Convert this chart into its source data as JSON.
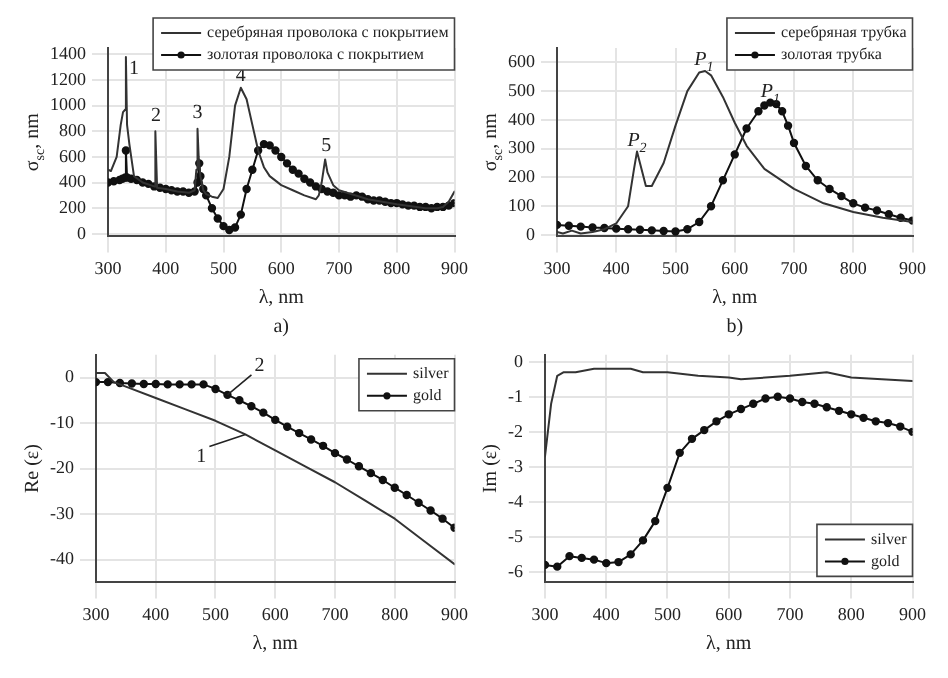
{
  "chart_data": [
    {
      "type": "line",
      "xlabel": "λ, nm",
      "ylabel": "σ$_{sc}$, nm",
      "xlim": [
        300,
        900
      ],
      "xticks": [
        300,
        400,
        500,
        600,
        700,
        800,
        900
      ],
      "ylim": [
        -20,
        1450
      ],
      "yticks": [
        0,
        200,
        400,
        600,
        800,
        1000,
        1200,
        1400
      ],
      "grid": true,
      "legend": "top right",
      "series": [
        {
          "name": "серебряная проволока с покрытием",
          "color": "#333333",
          "marker": "none",
          "x": [
            300,
            305,
            315,
            322,
            326,
            330,
            331,
            333,
            337,
            345,
            360,
            380,
            381,
            383,
            385,
            386,
            400,
            420,
            440,
            450,
            453,
            455,
            457,
            460,
            465,
            470,
            480,
            490,
            500,
            510,
            520,
            530,
            540,
            550,
            560,
            570,
            580,
            600,
            620,
            640,
            660,
            665,
            670,
            676,
            680,
            690,
            700,
            750,
            800,
            850,
            870,
            880,
            890,
            900
          ],
          "values": [
            500,
            490,
            600,
            850,
            950,
            970,
            1380,
            850,
            700,
            450,
            400,
            370,
            370,
            800,
            360,
            360,
            350,
            330,
            320,
            340,
            500,
            820,
            600,
            450,
            340,
            310,
            290,
            280,
            350,
            600,
            1000,
            1140,
            1050,
            850,
            650,
            520,
            450,
            380,
            340,
            300,
            270,
            300,
            400,
            580,
            480,
            380,
            340,
            270,
            230,
            200,
            200,
            210,
            250,
            330
          ]
        },
        {
          "name": "золотая проволока с покрытием",
          "color": "#111111",
          "marker": "circle",
          "x": [
            300,
            310,
            320,
            325,
            330,
            331,
            333,
            340,
            350,
            360,
            370,
            380,
            390,
            400,
            410,
            420,
            430,
            440,
            450,
            455,
            458,
            460,
            465,
            470,
            480,
            490,
            500,
            510,
            520,
            530,
            540,
            550,
            560,
            570,
            580,
            590,
            600,
            610,
            620,
            630,
            640,
            650,
            660,
            670,
            680,
            690,
            700,
            710,
            720,
            730,
            740,
            750,
            760,
            770,
            780,
            790,
            800,
            810,
            820,
            830,
            840,
            850,
            860,
            870,
            880,
            890,
            900
          ],
          "values": [
            400,
            410,
            420,
            430,
            440,
            650,
            440,
            430,
            420,
            400,
            390,
            370,
            360,
            350,
            340,
            330,
            330,
            320,
            330,
            400,
            550,
            450,
            350,
            300,
            200,
            120,
            60,
            30,
            50,
            150,
            350,
            500,
            650,
            700,
            690,
            650,
            600,
            550,
            500,
            470,
            430,
            400,
            370,
            350,
            330,
            320,
            300,
            300,
            290,
            300,
            290,
            270,
            260,
            260,
            250,
            240,
            240,
            230,
            220,
            220,
            210,
            210,
            200,
            210,
            210,
            220,
            240
          ]
        }
      ],
      "annotations": [
        {
          "text": "1",
          "x": 345,
          "y": 1250
        },
        {
          "text": "2",
          "x": 383,
          "y": 880
        },
        {
          "text": "3",
          "x": 455,
          "y": 900
        },
        {
          "text": "4",
          "x": 530,
          "y": 1190
        },
        {
          "text": "5",
          "x": 678,
          "y": 645
        },
        "a)"
      ]
    },
    {
      "type": "line",
      "xlabel": "λ, nm",
      "ylabel": "σ$_{sc}$, nm",
      "xlim": [
        300,
        900
      ],
      "xticks": [
        300,
        400,
        500,
        600,
        700,
        800,
        900
      ],
      "ylim": [
        -5,
        650
      ],
      "yticks": [
        0,
        100,
        200,
        300,
        400,
        500,
        600
      ],
      "grid": true,
      "legend": "top right",
      "series": [
        {
          "name": "серебряная трубка",
          "color": "#333333",
          "marker": "none",
          "x": [
            300,
            310,
            325,
            340,
            360,
            380,
            400,
            420,
            430,
            435,
            440,
            450,
            460,
            480,
            500,
            520,
            540,
            550,
            560,
            580,
            600,
            620,
            650,
            700,
            750,
            800,
            850,
            900
          ],
          "values": [
            10,
            5,
            15,
            5,
            10,
            20,
            40,
            100,
            230,
            290,
            250,
            170,
            170,
            250,
            380,
            500,
            565,
            570,
            555,
            480,
            390,
            310,
            230,
            160,
            110,
            80,
            60,
            45
          ]
        },
        {
          "name": "золотая трубка",
          "color": "#111111",
          "marker": "circle",
          "x": [
            300,
            320,
            340,
            360,
            380,
            400,
            420,
            440,
            460,
            480,
            500,
            520,
            540,
            560,
            580,
            600,
            620,
            640,
            650,
            660,
            670,
            680,
            690,
            700,
            720,
            740,
            760,
            780,
            800,
            820,
            840,
            860,
            880,
            900
          ],
          "values": [
            35,
            32,
            29,
            26,
            24,
            22,
            20,
            18,
            16,
            14,
            12,
            20,
            45,
            100,
            190,
            280,
            370,
            430,
            450,
            460,
            455,
            430,
            380,
            320,
            240,
            190,
            160,
            135,
            110,
            95,
            85,
            72,
            60,
            50
          ]
        }
      ],
      "annotations": [
        {
          "text": "P$_{2}$",
          "x": 435,
          "y": 310
        },
        {
          "text": "P$_{1}$",
          "x": 548,
          "y": 590
        },
        {
          "text": "P$_{1}$",
          "x": 660,
          "y": 480
        },
        "b)"
      ]
    },
    {
      "type": "line",
      "xlabel": "λ, nm",
      "ylabel": "Re (ε)",
      "xlim": [
        300,
        900
      ],
      "xticks": [
        300,
        400,
        500,
        600,
        700,
        800,
        900
      ],
      "ylim": [
        -45,
        5
      ],
      "yticks": [
        -40,
        -30,
        -20,
        -10,
        0
      ],
      "grid": true,
      "legend": "top right",
      "series": [
        {
          "name": "silver",
          "color": "#333333",
          "marker": "none",
          "x": [
            300,
            315,
            330,
            350,
            400,
            450,
            500,
            550,
            600,
            650,
            700,
            750,
            800,
            850,
            900
          ],
          "values": [
            1,
            1,
            -1,
            -2,
            -4.5,
            -7,
            -9.5,
            -12.5,
            -16,
            -19.5,
            -23,
            -27,
            -31,
            -36,
            -41
          ]
        },
        {
          "name": "gold",
          "color": "#111111",
          "marker": "circle",
          "x": [
            300,
            320,
            340,
            360,
            380,
            400,
            420,
            440,
            460,
            480,
            500,
            520,
            540,
            560,
            580,
            600,
            620,
            640,
            660,
            680,
            700,
            720,
            740,
            760,
            780,
            800,
            820,
            840,
            860,
            880,
            900
          ],
          "values": [
            -1,
            -1,
            -1.2,
            -1.3,
            -1.4,
            -1.4,
            -1.5,
            -1.5,
            -1.5,
            -1.5,
            -2.5,
            -3.8,
            -5,
            -6.3,
            -7.7,
            -9.3,
            -10.8,
            -12.2,
            -13.6,
            -15,
            -16.6,
            -18,
            -19.5,
            -21,
            -22.5,
            -24.2,
            -25.8,
            -27.5,
            -29.2,
            -31,
            -33
          ]
        }
      ],
      "annotations": [
        {
          "text": "2",
          "x": 520,
          "y": -3.8
        },
        {
          "text": "1",
          "x": 550,
          "y": -12.5
        }
      ]
    },
    {
      "type": "line",
      "xlabel": "λ, nm",
      "ylabel": "Im (ε)",
      "xlim": [
        300,
        900
      ],
      "xticks": [
        300,
        400,
        500,
        600,
        700,
        800,
        900
      ],
      "ylim": [
        -6.3,
        0.2
      ],
      "yticks": [
        -6,
        -5,
        -4,
        -3,
        -2,
        -1,
        0
      ],
      "grid": true,
      "legend": "bottom right",
      "series": [
        {
          "name": "silver",
          "color": "#333333",
          "marker": "none",
          "x": [
            300,
            310,
            320,
            330,
            350,
            380,
            400,
            440,
            460,
            500,
            550,
            600,
            620,
            700,
            760,
            800,
            900
          ],
          "values": [
            -2.7,
            -1.2,
            -0.4,
            -0.3,
            -0.3,
            -0.2,
            -0.2,
            -0.2,
            -0.3,
            -0.3,
            -0.4,
            -0.45,
            -0.5,
            -0.4,
            -0.3,
            -0.45,
            -0.55
          ]
        },
        {
          "name": "gold",
          "color": "#111111",
          "marker": "circle",
          "x": [
            300,
            320,
            340,
            360,
            380,
            400,
            420,
            440,
            460,
            480,
            500,
            520,
            540,
            560,
            580,
            600,
            620,
            640,
            660,
            680,
            700,
            720,
            740,
            760,
            780,
            800,
            820,
            840,
            860,
            880,
            900
          ],
          "values": [
            -5.8,
            -5.85,
            -5.55,
            -5.6,
            -5.65,
            -5.75,
            -5.72,
            -5.5,
            -5.1,
            -4.55,
            -3.6,
            -2.6,
            -2.2,
            -1.95,
            -1.7,
            -1.5,
            -1.35,
            -1.2,
            -1.05,
            -1,
            -1.05,
            -1.15,
            -1.2,
            -1.3,
            -1.4,
            -1.5,
            -1.6,
            -1.7,
            -1.75,
            -1.85,
            -2
          ]
        }
      ]
    }
  ]
}
